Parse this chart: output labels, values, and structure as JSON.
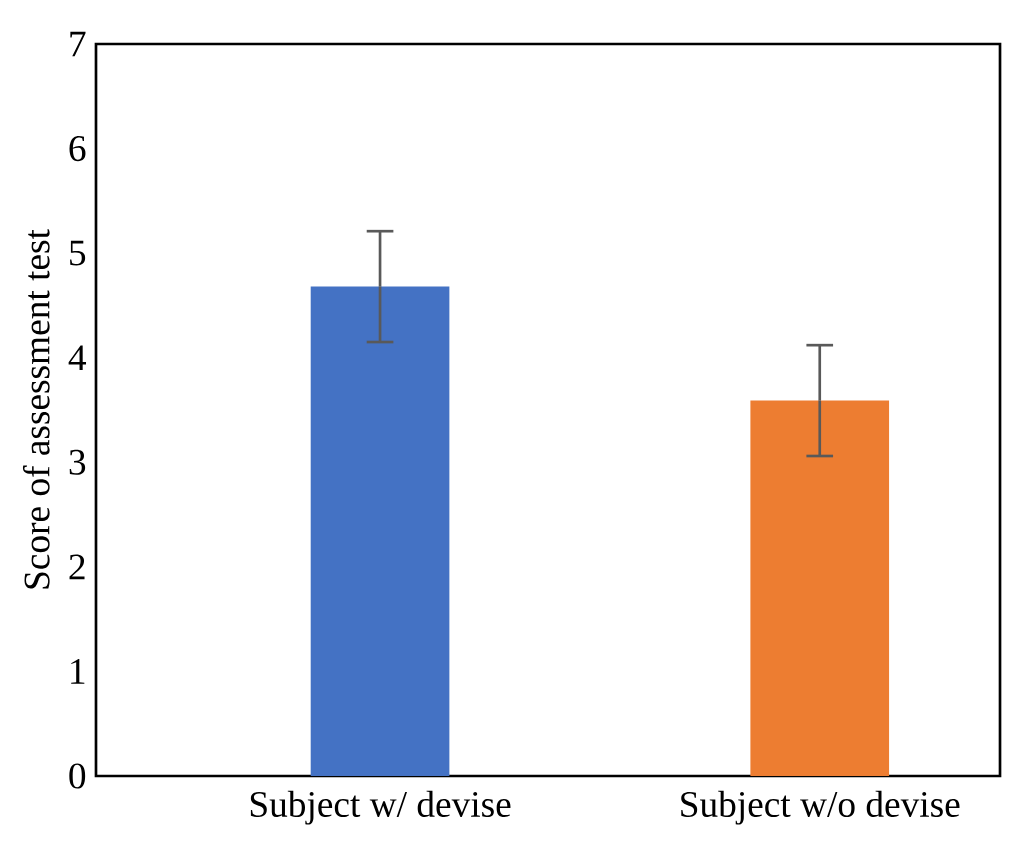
{
  "chart_data": {
    "type": "bar",
    "ylabel": "Score of assessment test",
    "categories": [
      "Subject w/  devise",
      "Subject w/o devise"
    ],
    "values": [
      4.68,
      3.59
    ],
    "errors": [
      0.53,
      0.53
    ],
    "colors": [
      "#4472c4",
      "#ed7d31"
    ],
    "ylim": [
      0,
      7
    ],
    "yticks": [
      0,
      1,
      2,
      3,
      4,
      5,
      6,
      7
    ]
  }
}
